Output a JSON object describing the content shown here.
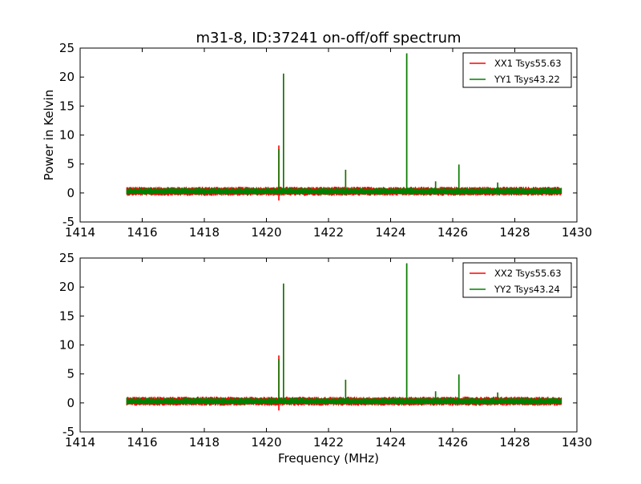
{
  "figure": {
    "title": "m31-8, ID:37241 on-off/off spectrum",
    "xlabel": "Frequency (MHz)"
  },
  "colors": {
    "xx": "#ff0000",
    "yy": "#008000",
    "axes": "#000000",
    "background": "#ffffff"
  },
  "chart_data": [
    {
      "type": "line",
      "title": "m31-8, ID:37241 on-off/off spectrum",
      "xlabel": "",
      "ylabel": "Power in Kelvin",
      "xlim": [
        1414,
        1430
      ],
      "ylim": [
        -5,
        25
      ],
      "xticks": [
        "1414",
        "1416",
        "1418",
        "1420",
        "1422",
        "1424",
        "1426",
        "1428",
        "1430"
      ],
      "yticks": [
        "-5",
        "0",
        "5",
        "10",
        "15",
        "20",
        "25"
      ],
      "legend_position": "top-right",
      "grid": false,
      "x_range": [
        1415.5,
        1429.5
      ],
      "noise": {
        "xx_half_width": 0.8,
        "yy_half_width": 0.6,
        "baseline": 0.3
      },
      "series": [
        {
          "name": "XX1 Tsys55.63",
          "color": "#ff0000",
          "peaks": [
            {
              "x": 1420.4,
              "y": 8.2
            },
            {
              "x": 1420.4,
              "y": -1.3
            },
            {
              "x": 1420.55,
              "y": 20.6
            },
            {
              "x": 1422.55,
              "y": 4.0
            },
            {
              "x": 1424.52,
              "y": 24.0
            },
            {
              "x": 1425.45,
              "y": 2.0
            },
            {
              "x": 1426.2,
              "y": 4.9
            },
            {
              "x": 1427.45,
              "y": 1.8
            }
          ]
        },
        {
          "name": "YY1 Tsys43.22",
          "color": "#008000",
          "peaks": [
            {
              "x": 1420.4,
              "y": 7.6
            },
            {
              "x": 1420.55,
              "y": 20.6
            },
            {
              "x": 1422.55,
              "y": 4.0
            },
            {
              "x": 1424.52,
              "y": 24.1
            },
            {
              "x": 1425.45,
              "y": 2.0
            },
            {
              "x": 1426.2,
              "y": 4.9
            },
            {
              "x": 1427.45,
              "y": 1.8
            }
          ]
        }
      ]
    },
    {
      "type": "line",
      "title": "",
      "xlabel": "Frequency (MHz)",
      "ylabel": "",
      "xlim": [
        1414,
        1430
      ],
      "ylim": [
        -5,
        25
      ],
      "xticks": [
        "1414",
        "1416",
        "1418",
        "1420",
        "1422",
        "1424",
        "1426",
        "1428",
        "1430"
      ],
      "yticks": [
        "-5",
        "0",
        "5",
        "10",
        "15",
        "20",
        "25"
      ],
      "legend_position": "top-right",
      "grid": false,
      "x_range": [
        1415.5,
        1429.5
      ],
      "noise": {
        "xx_half_width": 0.8,
        "yy_half_width": 0.6,
        "baseline": 0.3
      },
      "series": [
        {
          "name": "XX2 Tsys55.63",
          "color": "#ff0000",
          "peaks": [
            {
              "x": 1420.4,
              "y": 8.2
            },
            {
              "x": 1420.4,
              "y": -1.3
            },
            {
              "x": 1420.55,
              "y": 20.6
            },
            {
              "x": 1422.55,
              "y": 4.0
            },
            {
              "x": 1424.52,
              "y": 24.0
            },
            {
              "x": 1425.45,
              "y": 2.0
            },
            {
              "x": 1426.2,
              "y": 4.9
            },
            {
              "x": 1427.45,
              "y": 1.8
            }
          ]
        },
        {
          "name": "YY2 Tsys43.24",
          "color": "#008000",
          "peaks": [
            {
              "x": 1420.4,
              "y": 7.6
            },
            {
              "x": 1420.55,
              "y": 20.6
            },
            {
              "x": 1422.55,
              "y": 4.0
            },
            {
              "x": 1424.52,
              "y": 24.1
            },
            {
              "x": 1425.45,
              "y": 2.0
            },
            {
              "x": 1426.2,
              "y": 4.9
            },
            {
              "x": 1427.45,
              "y": 1.8
            }
          ]
        }
      ]
    }
  ]
}
